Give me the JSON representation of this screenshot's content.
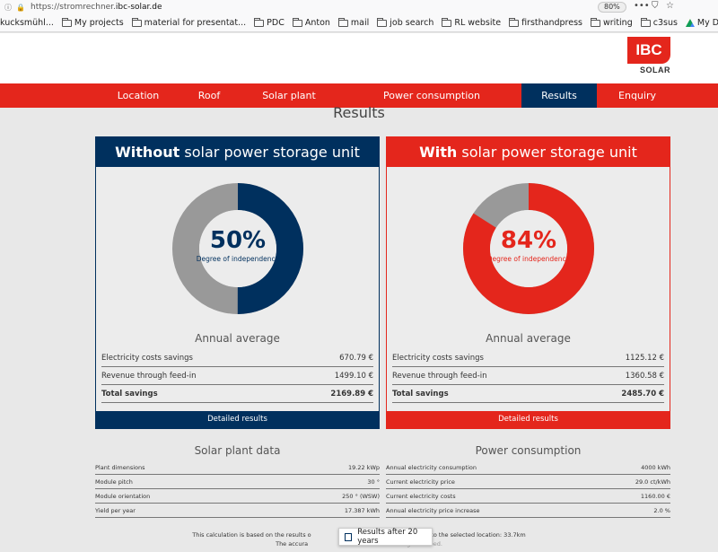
{
  "browser": {
    "url_prefix": "https://stromrechner.",
    "url_domain": "ibc-solar.de",
    "zoom": "80%",
    "actions": [
      "•••",
      "⛉",
      "☆"
    ]
  },
  "bookmarks": [
    {
      "label": "kucksmühl...",
      "icon": "none"
    },
    {
      "label": "My projects",
      "icon": "folder"
    },
    {
      "label": "material for presentat...",
      "icon": "folder"
    },
    {
      "label": "PDC",
      "icon": "folder"
    },
    {
      "label": "Anton",
      "icon": "folder"
    },
    {
      "label": "mail",
      "icon": "folder"
    },
    {
      "label": "job search",
      "icon": "folder"
    },
    {
      "label": "RL website",
      "icon": "folder"
    },
    {
      "label": "firsthandpress",
      "icon": "folder"
    },
    {
      "label": "writing",
      "icon": "folder"
    },
    {
      "label": "c3sus",
      "icon": "folder"
    },
    {
      "label": "My Drive - Google Drive",
      "icon": "google-drive"
    }
  ],
  "logo": {
    "badge": "IBC",
    "sub": "SOLAR"
  },
  "nav": {
    "items": [
      "Location",
      "Roof",
      "Solar plant",
      "Power consumption",
      "Results",
      "Enquiry"
    ],
    "active": "Results"
  },
  "page_title": "Results",
  "colors": {
    "brand_red": "#e4261c",
    "brand_blue": "#00305e",
    "grey": "#999999"
  },
  "cards": {
    "without": {
      "head_strong": "Without",
      "head_rest": " solar power storage unit",
      "percent": "50%",
      "percent_value": 50,
      "percent_label": "Degree of independence",
      "annual_title": "Annual average",
      "rows": [
        {
          "label": "Electricity costs savings",
          "value": "670.79 €"
        },
        {
          "label": "Revenue through feed-in",
          "value": "1499.10 €"
        },
        {
          "label": "Total savings",
          "value": "2169.89 €"
        }
      ],
      "footer": "Detailed results"
    },
    "with": {
      "head_strong": "With",
      "head_rest": " solar power storage unit",
      "percent": "84%",
      "percent_value": 84,
      "percent_label": "Degree of independence",
      "annual_title": "Annual average",
      "rows": [
        {
          "label": "Electricity costs savings",
          "value": "1125.12 €"
        },
        {
          "label": "Revenue through feed-in",
          "value": "1360.58 €"
        },
        {
          "label": "Total savings",
          "value": "2485.70 €"
        }
      ],
      "footer": "Detailed results"
    }
  },
  "solar_plant_data": {
    "title": "Solar plant data",
    "rows": [
      {
        "label": "Plant dimensions",
        "value": "19.22 kWp"
      },
      {
        "label": "Module pitch",
        "value": "30 °"
      },
      {
        "label": "Module orientation",
        "value": "250 ° (WSW)"
      },
      {
        "label": "Yield per year",
        "value": "17.387 kWh"
      }
    ]
  },
  "power_consumption": {
    "title": "Power consumption",
    "rows": [
      {
        "label": "Annual electricity consumption",
        "value": "4000 kWh"
      },
      {
        "label": "Current electricity price",
        "value": "29.0 ct/kWh"
      },
      {
        "label": "Current electricity costs",
        "value": "1160.00 €"
      },
      {
        "label": "Annual electricity price increase",
        "value": "2.0 %"
      }
    ]
  },
  "footnote": {
    "line1_start": "This calculation is based on the results o",
    "line1_end": "stance to the selected location: 33.7km",
    "line2_start": "The accura",
    "line2_end": "guaranteed."
  },
  "toggle": {
    "label": "Results after 20 years",
    "checked": false
  }
}
